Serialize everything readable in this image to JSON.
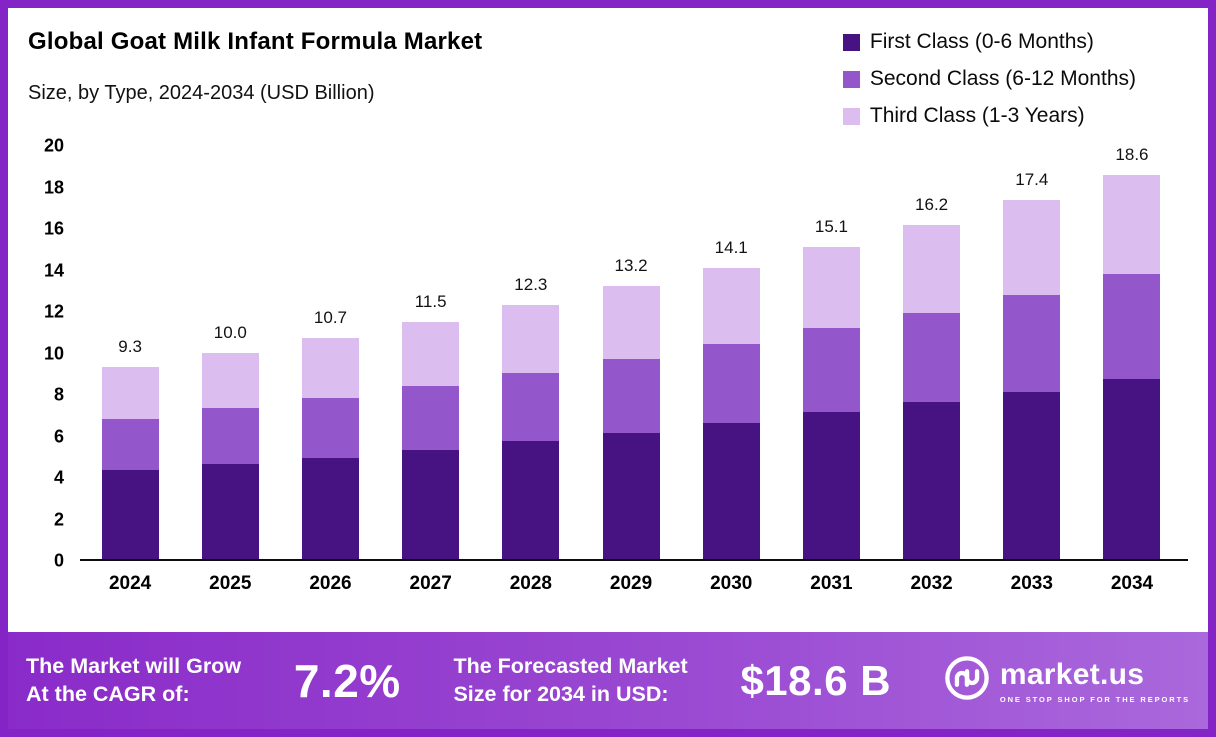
{
  "header": {
    "title": "Global Goat Milk Infant Formula Market",
    "subtitle": "Size, by Type, 2024-2034 (USD Billion)"
  },
  "legend": [
    {
      "label": "First Class (0-6 Months)",
      "color": "#471383"
    },
    {
      "label": "Second Class (6-12 Months)",
      "color": "#9456cb"
    },
    {
      "label": "Third Class (1-3 Years)",
      "color": "#dbbdef"
    }
  ],
  "chart_data": {
    "type": "bar",
    "stacked": true,
    "title": "Global Goat Milk Infant Formula Market Size, by Type, 2024-2034 (USD Billion)",
    "categories": [
      "2024",
      "2025",
      "2026",
      "2027",
      "2028",
      "2029",
      "2030",
      "2031",
      "2032",
      "2033",
      "2034"
    ],
    "series": [
      {
        "name": "First Class (0-6 Months)",
        "color": "#471383",
        "values": [
          4.3,
          4.6,
          4.9,
          5.3,
          5.7,
          6.1,
          6.6,
          7.1,
          7.6,
          8.1,
          8.7
        ]
      },
      {
        "name": "Second Class (6-12 Months)",
        "color": "#9456cb",
        "values": [
          2.5,
          2.7,
          2.9,
          3.1,
          3.3,
          3.6,
          3.8,
          4.1,
          4.3,
          4.7,
          5.1
        ]
      },
      {
        "name": "Third Class (1-3 Years)",
        "color": "#dbbdef",
        "values": [
          2.5,
          2.7,
          2.9,
          3.1,
          3.3,
          3.5,
          3.7,
          3.9,
          4.3,
          4.6,
          4.8
        ]
      }
    ],
    "totals": [
      9.3,
      10.0,
      10.7,
      11.5,
      12.3,
      13.2,
      14.1,
      15.1,
      16.2,
      17.4,
      18.6
    ],
    "total_labels": [
      "9.3",
      "10.0",
      "10.7",
      "11.5",
      "12.3",
      "13.2",
      "14.1",
      "15.1",
      "16.2",
      "17.4",
      "18.6"
    ],
    "xlabel": "",
    "ylabel": "",
    "ylim": [
      0,
      20
    ],
    "yticks": [
      0,
      2,
      4,
      6,
      8,
      10,
      12,
      14,
      16,
      18,
      20
    ],
    "grid": false,
    "legend_position": "top-right"
  },
  "banner": {
    "grow_line1": "The Market will Grow",
    "grow_line2": "At the CAGR of:",
    "cagr_value": "7.2%",
    "forecast_line1": "The Forecasted Market",
    "forecast_line2": "Size for 2034 in USD:",
    "forecast_value": "$18.6 B",
    "brand": "market.us",
    "brand_tagline": "ONE STOP SHOP FOR THE REPORTS"
  }
}
